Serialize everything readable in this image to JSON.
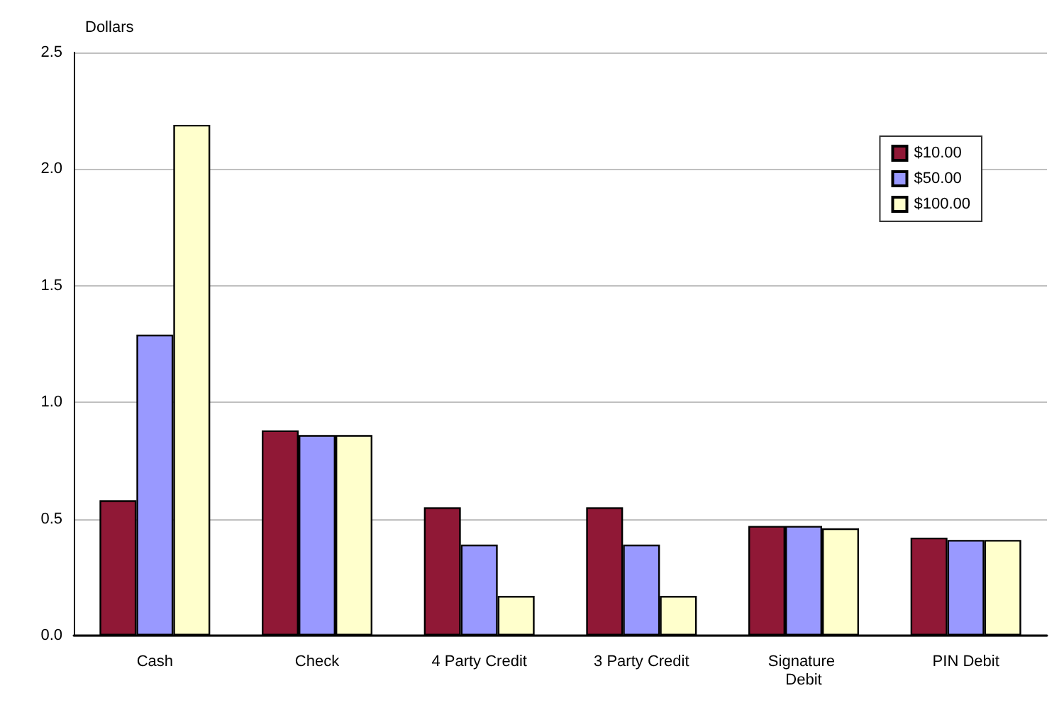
{
  "chart_data": {
    "type": "bar",
    "ylabel": "Dollars",
    "categories": [
      "Cash",
      "Check",
      "4 Party Credit",
      "3 Party Credit",
      "Signature Debit",
      "PIN Debit"
    ],
    "series": [
      {
        "name": "$10.00",
        "color": "#901836",
        "values": [
          0.58,
          0.88,
          0.55,
          0.55,
          0.47,
          0.42
        ]
      },
      {
        "name": "$50.00",
        "color": "#9999ff",
        "values": [
          1.29,
          0.86,
          0.39,
          0.39,
          0.47,
          0.41
        ]
      },
      {
        "name": "$100.00",
        "color": "#ffffcc",
        "values": [
          2.19,
          0.86,
          0.17,
          0.17,
          0.46,
          0.41
        ]
      }
    ],
    "ylim": [
      0,
      2.5
    ],
    "yticks": [
      {
        "value": 0,
        "label": "0.0"
      },
      0.5,
      {
        "value": 1,
        "label": "1.0"
      },
      1.5,
      {
        "value": 2,
        "label": "2.0"
      },
      2.5
    ],
    "grid": "y",
    "legend": "top right"
  }
}
